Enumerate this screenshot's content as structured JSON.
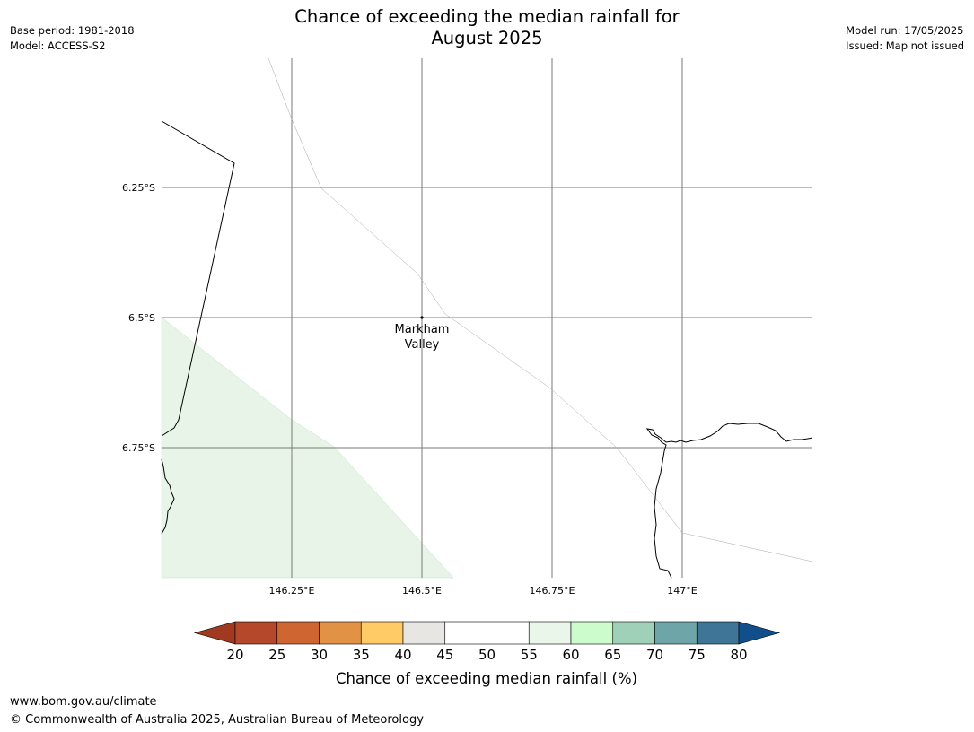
{
  "title": {
    "line1": "Chance of exceeding the median rainfall for",
    "line2": "August 2025"
  },
  "meta_left": {
    "base_period": "Base period: 1981-2018",
    "model": "Model: ACCESS-S2"
  },
  "meta_right": {
    "model_run": "Model run: 17/05/2025",
    "issued": "Issued: Map not issued"
  },
  "map": {
    "lat_labels": [
      "6.25°S",
      "6.5°S",
      "6.75°S"
    ],
    "lon_labels": [
      "146.25°E",
      "146.5°E",
      "146.75°E",
      "147°E"
    ],
    "place": {
      "line1": "Markham",
      "line2": "Valley"
    },
    "shaded_color": "#e8f4e8"
  },
  "colorbar": {
    "ticks": [
      "20",
      "25",
      "30",
      "35",
      "40",
      "45",
      "50",
      "55",
      "60",
      "65",
      "70",
      "75",
      "80"
    ],
    "colors": [
      "#a0391f",
      "#b5482a",
      "#cf6530",
      "#e29244",
      "#fecb66",
      "#e8e6e3",
      "#ffffff",
      "#ffffff",
      "#ebf6eb",
      "#ccfbcc",
      "#9fd0b8",
      "#6ea5a8",
      "#3f7698",
      "#104f8b"
    ],
    "label": "Chance of exceeding median rainfall (%)"
  },
  "footer": {
    "url": "www.bom.gov.au/climate",
    "copyright": "© Commonwealth of Australia 2025, Australian Bureau of Meteorology"
  }
}
